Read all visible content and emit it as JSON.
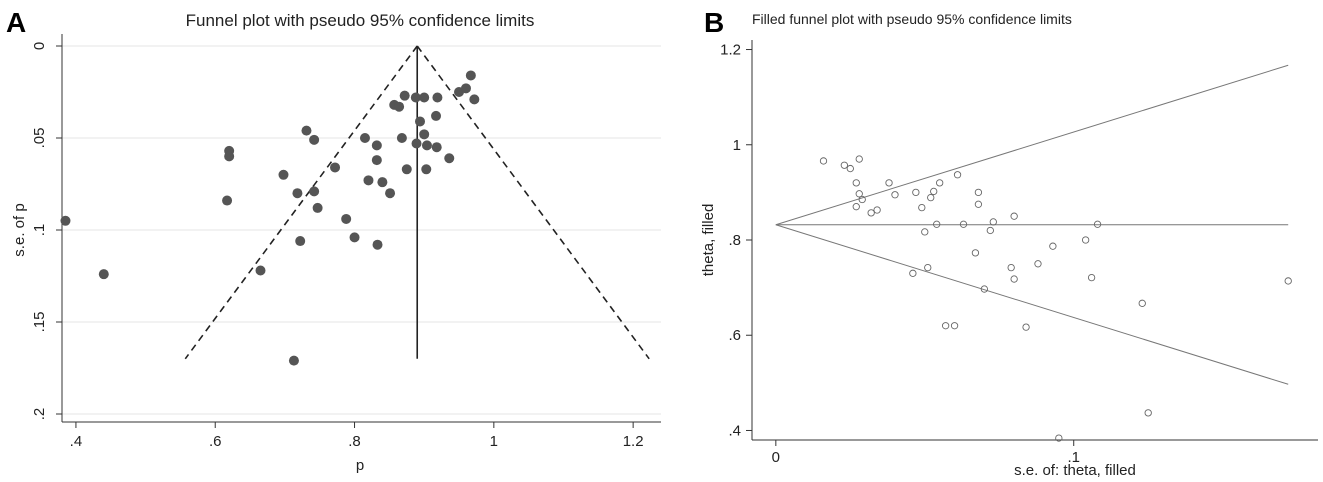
{
  "panels": {
    "a": {
      "letter": "A"
    },
    "b": {
      "letter": "B"
    }
  },
  "chart_data": [
    {
      "type": "scatter",
      "title": "Funnel plot with pseudo 95% confidence limits",
      "xlabel": "p",
      "ylabel": "s.e. of p",
      "xlim": [
        0.38,
        1.24
      ],
      "ylim": [
        0,
        0.2
      ],
      "y_reversed": true,
      "xticks": [
        0.4,
        0.6,
        0.8,
        1.0,
        1.2
      ],
      "xtick_labels": [
        ".4",
        ".6",
        ".8",
        "1",
        "1.2"
      ],
      "yticks": [
        0,
        0.05,
        0.1,
        0.15,
        0.2
      ],
      "ytick_labels": [
        "0",
        ".05",
        ".1",
        ".15",
        ".2"
      ],
      "grid": "horizontal",
      "marker": "filled-circle",
      "marker_color": "#555555",
      "pooled_estimate": 0.89,
      "pseudo_ci": {
        "apex": [
          0.89,
          0
        ],
        "left_bottom": [
          0.557,
          0.17
        ],
        "right_bottom": [
          1.223,
          0.17
        ]
      },
      "points": [
        [
          0.385,
          0.095
        ],
        [
          0.44,
          0.124
        ],
        [
          0.617,
          0.084
        ],
        [
          0.62,
          0.057
        ],
        [
          0.62,
          0.06
        ],
        [
          0.665,
          0.122
        ],
        [
          0.698,
          0.07
        ],
        [
          0.713,
          0.171
        ],
        [
          0.718,
          0.08
        ],
        [
          0.722,
          0.106
        ],
        [
          0.731,
          0.046
        ],
        [
          0.742,
          0.051
        ],
        [
          0.742,
          0.079
        ],
        [
          0.747,
          0.088
        ],
        [
          0.772,
          0.066
        ],
        [
          0.788,
          0.094
        ],
        [
          0.8,
          0.104
        ],
        [
          0.815,
          0.05
        ],
        [
          0.82,
          0.073
        ],
        [
          0.832,
          0.054
        ],
        [
          0.832,
          0.062
        ],
        [
          0.833,
          0.108
        ],
        [
          0.84,
          0.074
        ],
        [
          0.851,
          0.08
        ],
        [
          0.857,
          0.032
        ],
        [
          0.864,
          0.033
        ],
        [
          0.868,
          0.05
        ],
        [
          0.872,
          0.027
        ],
        [
          0.875,
          0.067
        ],
        [
          0.888,
          0.028
        ],
        [
          0.889,
          0.053
        ],
        [
          0.894,
          0.041
        ],
        [
          0.9,
          0.028
        ],
        [
          0.9,
          0.048
        ],
        [
          0.903,
          0.067
        ],
        [
          0.904,
          0.054
        ],
        [
          0.917,
          0.038
        ],
        [
          0.918,
          0.055
        ],
        [
          0.919,
          0.028
        ],
        [
          0.936,
          0.061
        ],
        [
          0.95,
          0.025
        ],
        [
          0.96,
          0.023
        ],
        [
          0.967,
          0.016
        ],
        [
          0.972,
          0.029
        ]
      ]
    },
    {
      "type": "scatter",
      "title": "Filled funnel plot with pseudo 95% confidence limits",
      "xlabel": "s.e. of: theta, filled",
      "ylabel": "theta, filled",
      "xlim": [
        -0.008,
        0.182
      ],
      "ylim": [
        0.38,
        1.22
      ],
      "xticks": [
        0,
        0.1
      ],
      "xtick_labels": [
        "0",
        ".1"
      ],
      "yticks": [
        0.4,
        0.6,
        0.8,
        1.0,
        1.2
      ],
      "ytick_labels": [
        ".4",
        ".6",
        ".8",
        "1",
        "1.2"
      ],
      "grid": "none",
      "marker": "hollow-circle",
      "marker_color": "#666666",
      "pooled_estimate": 0.832,
      "pseudo_ci": {
        "apex": [
          0,
          0.832
        ],
        "upper_end": [
          0.172,
          1.167
        ],
        "lower_end": [
          0.172,
          0.497
        ]
      },
      "points": [
        [
          0.016,
          0.966
        ],
        [
          0.023,
          0.957
        ],
        [
          0.025,
          0.95
        ],
        [
          0.027,
          0.92
        ],
        [
          0.027,
          0.87
        ],
        [
          0.028,
          0.897
        ],
        [
          0.028,
          0.97
        ],
        [
          0.029,
          0.885
        ],
        [
          0.032,
          0.857
        ],
        [
          0.034,
          0.863
        ],
        [
          0.038,
          0.92
        ],
        [
          0.04,
          0.895
        ],
        [
          0.046,
          0.73
        ],
        [
          0.047,
          0.9
        ],
        [
          0.049,
          0.868
        ],
        [
          0.05,
          0.817
        ],
        [
          0.051,
          0.742
        ],
        [
          0.052,
          0.889
        ],
        [
          0.053,
          0.902
        ],
        [
          0.054,
          0.833
        ],
        [
          0.055,
          0.92
        ],
        [
          0.057,
          0.62
        ],
        [
          0.06,
          0.62
        ],
        [
          0.061,
          0.937
        ],
        [
          0.063,
          0.833
        ],
        [
          0.067,
          0.773
        ],
        [
          0.068,
          0.9
        ],
        [
          0.068,
          0.875
        ],
        [
          0.07,
          0.697
        ],
        [
          0.072,
          0.82
        ],
        [
          0.073,
          0.838
        ],
        [
          0.079,
          0.742
        ],
        [
          0.08,
          0.718
        ],
        [
          0.08,
          0.85
        ],
        [
          0.084,
          0.617
        ],
        [
          0.088,
          0.75
        ],
        [
          0.093,
          0.787
        ],
        [
          0.095,
          0.384
        ],
        [
          0.104,
          0.8
        ],
        [
          0.106,
          0.721
        ],
        [
          0.108,
          0.833
        ],
        [
          0.123,
          0.667
        ],
        [
          0.125,
          0.437
        ],
        [
          0.172,
          0.714
        ]
      ]
    }
  ]
}
